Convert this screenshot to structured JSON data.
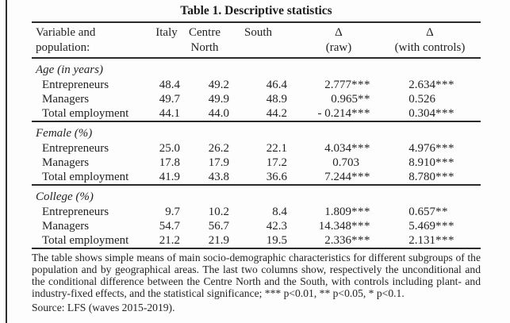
{
  "title": "Table 1. Descriptive statistics",
  "colors": {
    "text": "#232323",
    "rule": "#2b2b2b",
    "background": "#fdfdfd"
  },
  "table": {
    "header": {
      "col1_line1": "Variable and",
      "col1_line2": "population:",
      "italy": "Italy",
      "centre_north_line1": "Centre",
      "centre_north_line2": "North",
      "south": "South",
      "delta_raw_line1": "Δ",
      "delta_raw_line2": "(raw)",
      "delta_controls_line1": "Δ",
      "delta_controls_line2": "(with controls)"
    },
    "sections": [
      {
        "name": "Age (in years)",
        "rows": [
          {
            "label": "Entrepreneurs",
            "italy": "48.4",
            "centre_north": "49.2",
            "south": "46.4",
            "delta_raw_num": "2.777",
            "delta_raw_stars": "***",
            "delta_controls_num": "2.634",
            "delta_controls_stars": "***"
          },
          {
            "label": "Managers",
            "italy": "49.7",
            "centre_north": "49.9",
            "south": "48.9",
            "delta_raw_num": "0.965",
            "delta_raw_stars": "**",
            "delta_controls_num": "0.526",
            "delta_controls_stars": ""
          },
          {
            "label": "Total employment",
            "italy": "44.1",
            "centre_north": "44.0",
            "south": "44.2",
            "delta_raw_num": "- 0.214",
            "delta_raw_stars": "***",
            "delta_controls_num": "0.304",
            "delta_controls_stars": "***"
          }
        ]
      },
      {
        "name": "Female (%)",
        "rows": [
          {
            "label": "Entrepreneurs",
            "italy": "25.0",
            "centre_north": "26.2",
            "south": "22.1",
            "delta_raw_num": "4.034",
            "delta_raw_stars": "***",
            "delta_controls_num": "4.976",
            "delta_controls_stars": "***"
          },
          {
            "label": "Managers",
            "italy": "17.8",
            "centre_north": "17.9",
            "south": "17.2",
            "delta_raw_num": "0.703",
            "delta_raw_stars": "",
            "delta_controls_num": "8.910",
            "delta_controls_stars": "***"
          },
          {
            "label": "Total employment",
            "italy": "41.9",
            "centre_north": "43.8",
            "south": "36.6",
            "delta_raw_num": "7.244",
            "delta_raw_stars": "***",
            "delta_controls_num": "8.780",
            "delta_controls_stars": "***"
          }
        ]
      },
      {
        "name": "College (%)",
        "rows": [
          {
            "label": "Entrepreneurs",
            "italy": "9.7",
            "centre_north": "10.2",
            "south": "8.4",
            "delta_raw_num": "1.809",
            "delta_raw_stars": "***",
            "delta_controls_num": "0.657",
            "delta_controls_stars": "**"
          },
          {
            "label": "Managers",
            "italy": "54.7",
            "centre_north": "56.7",
            "south": "42.3",
            "delta_raw_num": "14.348",
            "delta_raw_stars": "***",
            "delta_controls_num": "5.469",
            "delta_controls_stars": "***"
          },
          {
            "label": "Total employment",
            "italy": "21.2",
            "centre_north": "21.9",
            "south": "19.5",
            "delta_raw_num": "2.336",
            "delta_raw_stars": "***",
            "delta_controls_num": "2.131",
            "delta_controls_stars": "***"
          }
        ]
      }
    ]
  },
  "notes": {
    "body": "The table shows simple means of main socio-demographic characteristics for different subgroups of the population and by geographical areas. The last two columns show, respectively the unconditional and the conditional difference between the Centre North and the South, with controls including plant- and industry-fixed effects, and the statistical significance; *** p<0.01, ** p<0.05, * p<0.1.",
    "source": "Source: LFS (waves 2015-2019)."
  }
}
